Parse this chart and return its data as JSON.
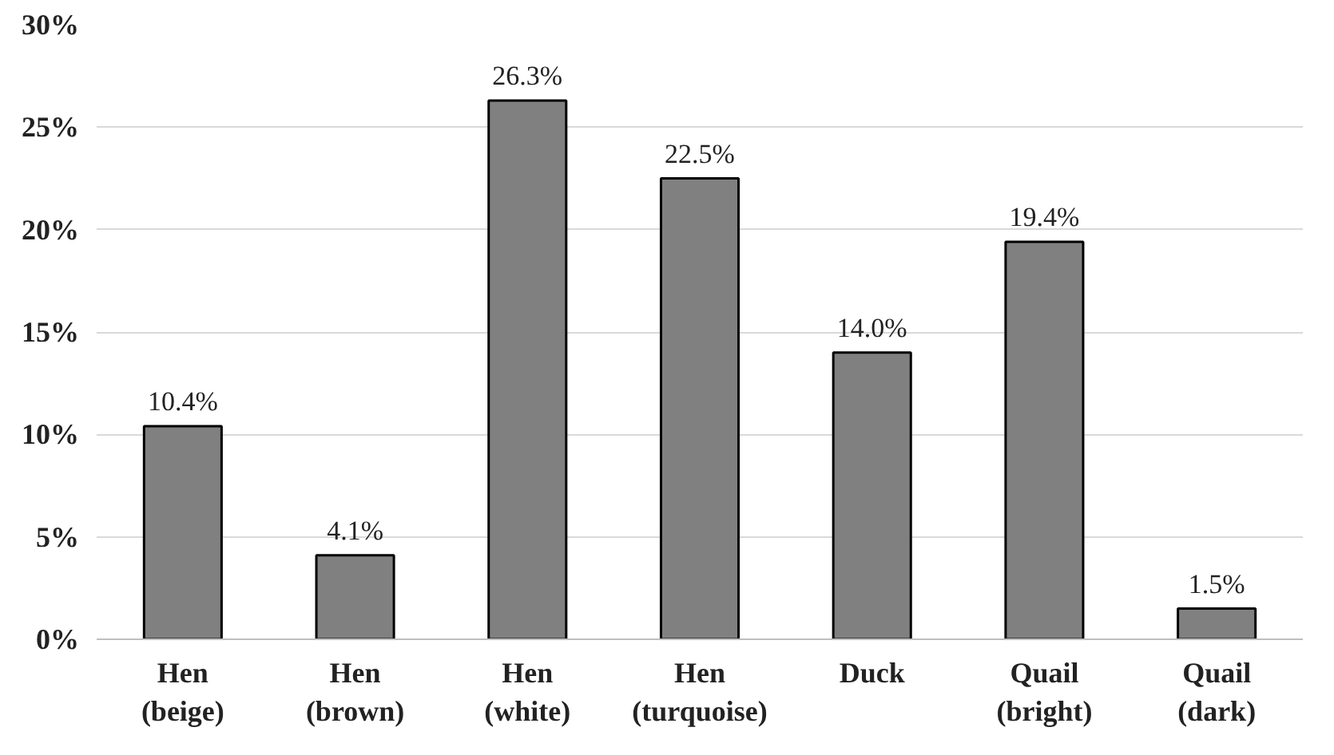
{
  "chart_data": {
    "type": "bar",
    "categories": [
      "Hen\n(beige)",
      "Hen\n(brown)",
      "Hen\n(white)",
      "Hen\n(turquoise)",
      "Duck",
      "Quail\n(bright)",
      "Quail\n(dark)"
    ],
    "values": [
      10.4,
      4.1,
      26.3,
      22.5,
      14.0,
      19.4,
      1.5
    ],
    "value_labels": [
      "10.4%",
      "4.1%",
      "26.3%",
      "22.5%",
      "14.0%",
      "19.4%",
      "1.5%"
    ],
    "color": "#808080",
    "ylim": [
      0,
      30
    ],
    "yticks": [
      {
        "value": 0,
        "label": "0%"
      },
      {
        "value": 5,
        "label": "5%"
      },
      {
        "value": 10,
        "label": "10%"
      },
      {
        "value": 15,
        "label": "15%"
      },
      {
        "value": 20,
        "label": "20%"
      },
      {
        "value": 25,
        "label": "25%"
      },
      {
        "value": 30,
        "label": "30%"
      }
    ],
    "grid": "y"
  }
}
